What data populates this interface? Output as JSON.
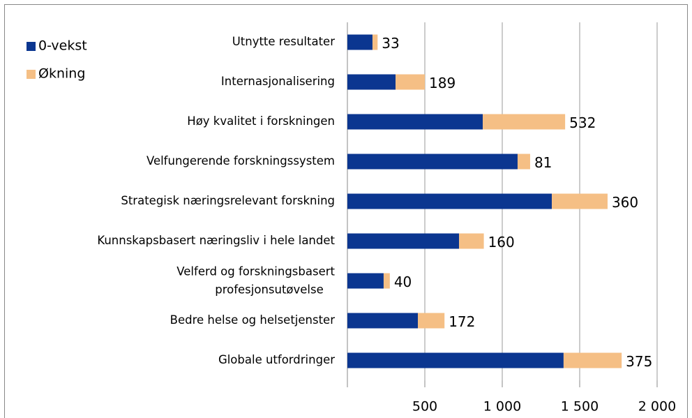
{
  "chart_data": {
    "type": "stacked-bar-horizontal",
    "categories": [
      "Utnytte resultater",
      "Internasjonalisering",
      "Høy kvalitet i forskningen",
      "Velfungerende forskningssystem",
      "Strategisk næringsrelevant forskning",
      "Kunnskapsbasert næringsliv i hele landet",
      "Velferd og forskningsbasert profesjonsutøvelse",
      "Bedre helse og helsetjenster",
      "Globale utfordringer"
    ],
    "series": [
      {
        "name": "0-vekst",
        "color": "#0b3690",
        "values": [
          162,
          311,
          874,
          1099,
          1320,
          721,
          234,
          455,
          1396
        ]
      },
      {
        "name": "Økning",
        "color": "#f5bf85",
        "values": [
          33,
          189,
          532,
          81,
          360,
          160,
          40,
          172,
          375
        ]
      }
    ],
    "xlim": [
      0,
      2000
    ],
    "xticks": [
      500,
      {
        "value": 1000,
        "label": "1 000"
      },
      {
        "value": 1500,
        "label": "1 500"
      },
      {
        "value": 2000,
        "label": "2 000"
      }
    ],
    "grid": true,
    "legend": "top-left"
  }
}
